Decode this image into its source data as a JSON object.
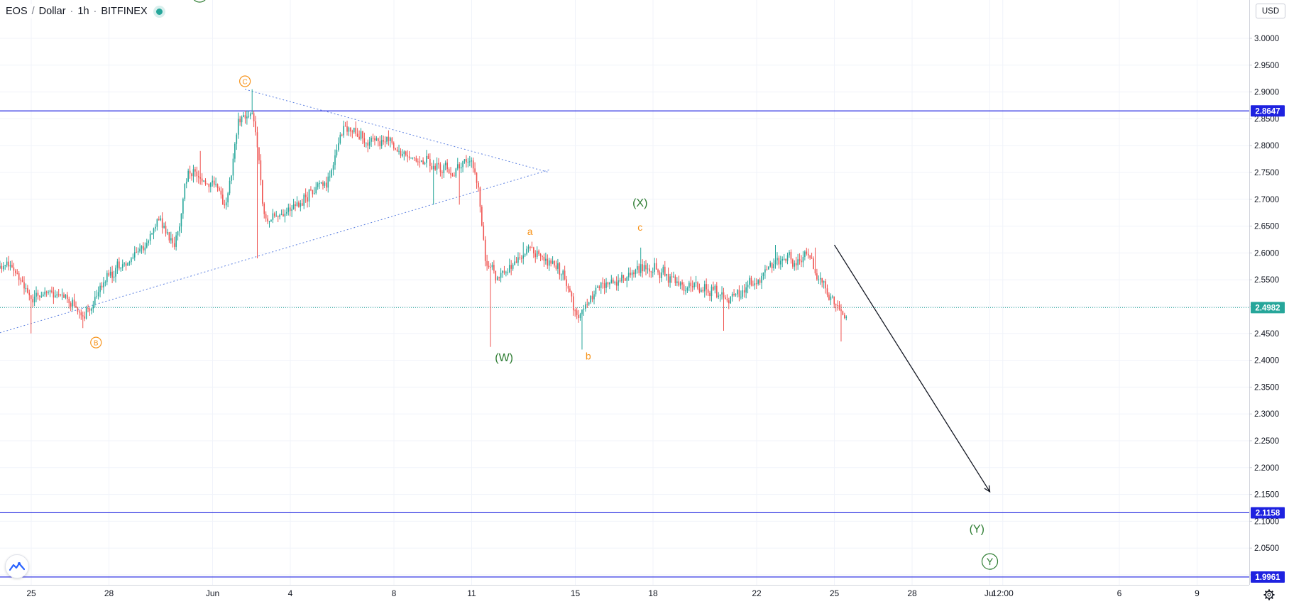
{
  "header": {
    "symbol": "EOS",
    "quote": "Dollar",
    "interval": "1h",
    "exchange": "BITFINEX"
  },
  "currency_button": "USD",
  "colors": {
    "up": "#26a69a",
    "down": "#ef5350",
    "level_line": "#1e22e0",
    "trendline": "#5b7fe0",
    "wave_green": "#2e7d32",
    "wave_orange": "#f7931a",
    "grid": "#f0f3fa"
  },
  "chart_data": {
    "type": "candlestick",
    "price_axis": {
      "ticks": [
        "3.0000",
        "2.9500",
        "2.9000",
        "2.8500",
        "2.8000",
        "2.7500",
        "2.7000",
        "2.6500",
        "2.6000",
        "2.5500",
        "2.5000",
        "2.4500",
        "2.4000",
        "2.3500",
        "2.3000",
        "2.2500",
        "2.2000",
        "2.1500",
        "2.1000",
        "2.0500",
        "2.0000"
      ],
      "range": [
        1.98,
        3.07
      ]
    },
    "time_axis": {
      "ticks": [
        "25",
        "28",
        "Jun",
        "4",
        "8",
        "11",
        "15",
        "18",
        "22",
        "25",
        "28",
        "Jul",
        "12:00",
        "6",
        "9"
      ]
    },
    "price_labels": [
      {
        "value": "2.8647",
        "price": 2.8647,
        "style": "level"
      },
      {
        "value": "2.4982",
        "price": 2.4982,
        "style": "last"
      },
      {
        "value": "2.1158",
        "price": 2.1158,
        "style": "level"
      },
      {
        "value": "1.9961",
        "price": 1.9961,
        "style": "level"
      }
    ],
    "waypoints": [
      {
        "date": "May 24",
        "price": 2.585
      },
      {
        "date": "May 25",
        "price": 2.515
      },
      {
        "date": "May 26",
        "price": 2.53
      },
      {
        "date": "May 27",
        "price": 2.48
      },
      {
        "date": "May 28",
        "price": 2.565
      },
      {
        "date": "May 29",
        "price": 2.6
      },
      {
        "date": "May 30",
        "price": 2.66
      },
      {
        "date": "May 30 12:00",
        "price": 2.61
      },
      {
        "date": "May 31",
        "price": 2.75
      },
      {
        "date": "Jun 1",
        "price": 2.73
      },
      {
        "date": "Jun 1 12:00",
        "price": 2.69
      },
      {
        "date": "Jun 2",
        "price": 2.86
      },
      {
        "date": "Jun 2 12:00",
        "price": 2.87
      },
      {
        "date": "Jun 3",
        "price": 2.65
      },
      {
        "date": "Jun 4",
        "price": 2.69
      },
      {
        "date": "Jun 5",
        "price": 2.72
      },
      {
        "date": "Jun 5 12:00",
        "price": 2.74
      },
      {
        "date": "Jun 6",
        "price": 2.835
      },
      {
        "date": "Jun 7",
        "price": 2.81
      },
      {
        "date": "Jun 8",
        "price": 2.8
      },
      {
        "date": "Jun 9",
        "price": 2.77
      },
      {
        "date": "Jun 10",
        "price": 2.755
      },
      {
        "date": "Jun 11",
        "price": 2.765
      },
      {
        "date": "Jun 11 06:00",
        "price": 2.72
      },
      {
        "date": "Jun 11 12:00",
        "price": 2.57
      },
      {
        "date": "Jun 12",
        "price": 2.555
      },
      {
        "date": "Jun 13",
        "price": 2.6
      },
      {
        "date": "Jun 14",
        "price": 2.59
      },
      {
        "date": "Jun 14 12:00",
        "price": 2.56
      },
      {
        "date": "Jun 15",
        "price": 2.485
      },
      {
        "date": "Jun 16",
        "price": 2.54
      },
      {
        "date": "Jun 17",
        "price": 2.565
      },
      {
        "date": "Jun 18",
        "price": 2.57
      },
      {
        "date": "Jun 19",
        "price": 2.545
      },
      {
        "date": "Jun 20",
        "price": 2.53
      },
      {
        "date": "Jun 21",
        "price": 2.52
      },
      {
        "date": "Jun 22",
        "price": 2.55
      },
      {
        "date": "Jun 23",
        "price": 2.59
      },
      {
        "date": "Jun 24",
        "price": 2.59
      },
      {
        "date": "Jun 24 12:00",
        "price": 2.54
      },
      {
        "date": "Jun 25",
        "price": 2.5
      },
      {
        "date": "Jun 25 12:00",
        "price": 2.498
      }
    ],
    "annotations": {
      "wave_labels": [
        {
          "text": "X",
          "style": "circle-green",
          "date": "May 31 12:00",
          "price": 3.082
        },
        {
          "text": "C",
          "style": "circle-orange",
          "date": "Jun 2 06:00",
          "price": 2.92
        },
        {
          "text": "B",
          "style": "circle-orange",
          "date": "May 27 12:00",
          "price": 2.433
        },
        {
          "text": "(W)",
          "style": "paren-green",
          "date": "Jun 12 06:00",
          "price": 2.405
        },
        {
          "text": "a",
          "style": "letter-orange",
          "date": "Jun 13 06:00",
          "price": 2.64
        },
        {
          "text": "b",
          "style": "letter-orange",
          "date": "Jun 15 12:00",
          "price": 2.408
        },
        {
          "text": "(X)",
          "style": "paren-green",
          "date": "Jun 17 12:00",
          "price": 2.693
        },
        {
          "text": "c",
          "style": "letter-orange",
          "date": "Jun 17 12:00",
          "price": 2.648
        },
        {
          "text": "(Y)",
          "style": "paren-green",
          "date": "Jun 30 12:00",
          "price": 2.085
        },
        {
          "text": "Y",
          "style": "circle-green",
          "date": "Jul 1",
          "price": 2.025
        }
      ],
      "trendlines": [
        {
          "from": {
            "date": "May 23",
            "price": 2.44
          },
          "to": {
            "date": "Jun 14",
            "price": 2.755
          }
        },
        {
          "from": {
            "date": "Jun 2 06:00",
            "price": 2.905
          },
          "to": {
            "date": "Jun 14",
            "price": 2.75
          }
        }
      ],
      "arrow": {
        "from": {
          "date": "Jun 25",
          "price": 2.615
        },
        "to": {
          "date": "Jul 1",
          "price": 2.155
        }
      }
    }
  }
}
